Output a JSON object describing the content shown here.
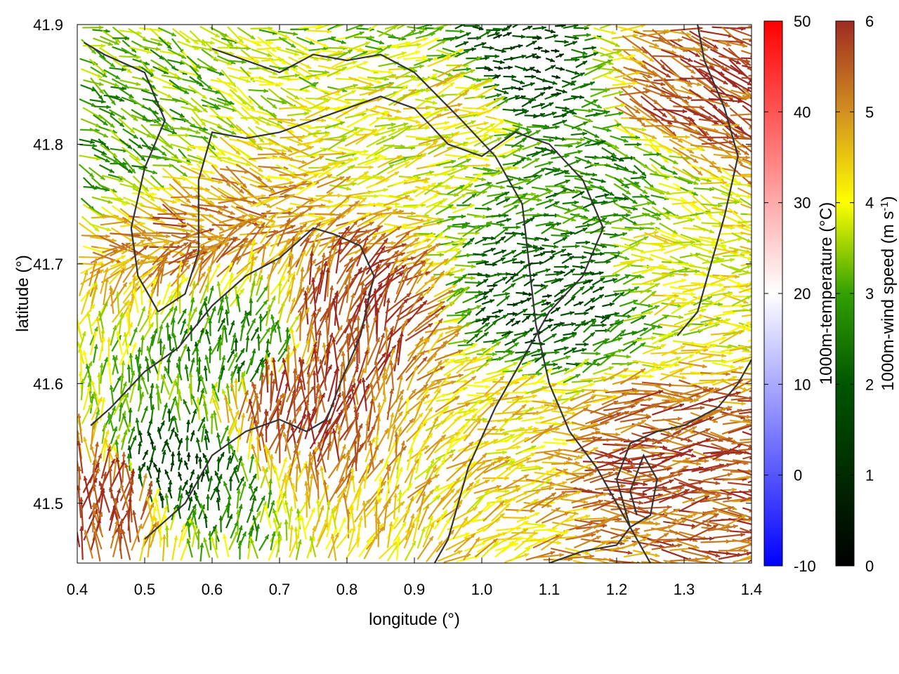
{
  "chart_data": {
    "type": "vector-field",
    "title": "",
    "xlabel": "longitude (°)",
    "ylabel": "latitude (°)",
    "xlim": [
      0.4,
      1.4
    ],
    "ylim": [
      41.45,
      41.9
    ],
    "x_ticks": [
      "0.4",
      "0.5",
      "0.6",
      "0.7",
      "0.8",
      "0.9",
      "1.0",
      "1.1",
      "1.2",
      "1.3",
      "1.4"
    ],
    "y_ticks": [
      "41.5",
      "41.6",
      "41.7",
      "41.8",
      "41.9"
    ],
    "grid": false,
    "colorbars": [
      {
        "label": "1000m-temperature (°C)",
        "ticks": [
          "-10",
          "0",
          "10",
          "20",
          "30",
          "40",
          "50"
        ],
        "range": [
          -10,
          50
        ],
        "colors": [
          "#0000ff",
          "#ffffff",
          "#ff0000"
        ]
      },
      {
        "label_main": "1000m-wind speed (m s",
        "label_sup": "-1",
        "label_end": ")",
        "ticks": [
          "0",
          "1",
          "2",
          "3",
          "4",
          "5",
          "6"
        ],
        "range": [
          0,
          6
        ],
        "colors": [
          "#000000",
          "#005500",
          "#33a000",
          "#ffff00",
          "#d29020",
          "#9e2a22"
        ]
      }
    ],
    "regions": [
      {
        "lon": 0.45,
        "lat": 41.5,
        "speed": 6.0
      },
      {
        "lon": 0.72,
        "lat": 41.58,
        "speed": 5.9
      },
      {
        "lon": 0.8,
        "lat": 41.65,
        "speed": 5.8
      },
      {
        "lon": 0.55,
        "lat": 41.73,
        "speed": 5.2
      },
      {
        "lon": 1.25,
        "lat": 41.54,
        "speed": 5.6
      },
      {
        "lon": 1.28,
        "lat": 41.85,
        "speed": 5.5
      },
      {
        "lon": 1.38,
        "lat": 41.86,
        "speed": 5.7
      },
      {
        "lon": 0.95,
        "lat": 41.83,
        "speed": 4.2
      },
      {
        "lon": 1.3,
        "lat": 41.7,
        "speed": 4.0
      },
      {
        "lon": 1.0,
        "lat": 41.55,
        "speed": 4.3
      },
      {
        "lon": 1.05,
        "lat": 41.86,
        "speed": 1.4
      },
      {
        "lon": 1.08,
        "lat": 41.67,
        "speed": 1.8
      },
      {
        "lon": 0.53,
        "lat": 41.52,
        "speed": 1.5
      },
      {
        "lon": 0.65,
        "lat": 41.62,
        "speed": 2.5
      },
      {
        "lon": 1.15,
        "lat": 41.78,
        "speed": 2.6
      },
      {
        "lon": 0.45,
        "lat": 41.8,
        "speed": 3.0
      }
    ],
    "vectors": [
      {
        "lon": 0.45,
        "lat": 41.5,
        "u": 0.1,
        "v": 1.0
      },
      {
        "lon": 0.75,
        "lat": 41.6,
        "u": 0.2,
        "v": 1.0
      },
      {
        "lon": 1.25,
        "lat": 41.54,
        "u": 1.0,
        "v": 0.05
      },
      {
        "lon": 1.3,
        "lat": 41.83,
        "u": 1.0,
        "v": -0.4
      },
      {
        "lon": 0.95,
        "lat": 41.8,
        "u": 1.0,
        "v": 0.2
      },
      {
        "lon": 1.05,
        "lat": 41.85,
        "u": 1.0,
        "v": 0.1
      },
      {
        "lon": 0.5,
        "lat": 41.82,
        "u": 0.8,
        "v": -0.4
      },
      {
        "lon": 1.05,
        "lat": 41.62,
        "u": 0.9,
        "v": 0.3
      },
      {
        "lon": 0.55,
        "lat": 41.55,
        "u": 0.0,
        "v": 1.0
      }
    ],
    "contours": [
      [
        [
          0.42,
          41.565
        ],
        [
          0.45,
          41.58
        ],
        [
          0.5,
          41.61
        ],
        [
          0.55,
          41.63
        ],
        [
          0.6,
          41.665
        ],
        [
          0.65,
          41.69
        ],
        [
          0.7,
          41.705
        ],
        [
          0.75,
          41.73
        ],
        [
          0.78,
          41.725
        ],
        [
          0.82,
          41.715
        ],
        [
          0.84,
          41.69
        ],
        [
          0.82,
          41.64
        ],
        [
          0.79,
          41.6
        ],
        [
          0.77,
          41.57
        ],
        [
          0.74,
          41.56
        ],
        [
          0.7,
          41.57
        ],
        [
          0.65,
          41.56
        ],
        [
          0.6,
          41.54
        ],
        [
          0.56,
          41.5
        ],
        [
          0.5,
          41.47
        ]
      ],
      [
        [
          0.52,
          41.66
        ],
        [
          0.49,
          41.69
        ],
        [
          0.48,
          41.73
        ],
        [
          0.5,
          41.78
        ],
        [
          0.53,
          41.82
        ],
        [
          0.5,
          41.86
        ],
        [
          0.44,
          41.875
        ],
        [
          0.41,
          41.885
        ]
      ],
      [
        [
          0.52,
          41.66
        ],
        [
          0.56,
          41.675
        ],
        [
          0.58,
          41.71
        ],
        [
          0.58,
          41.77
        ],
        [
          0.6,
          41.81
        ],
        [
          0.65,
          41.805
        ],
        [
          0.7,
          41.81
        ],
        [
          0.75,
          41.82
        ],
        [
          0.8,
          41.83
        ],
        [
          0.85,
          41.84
        ],
        [
          0.9,
          41.83
        ],
        [
          0.95,
          41.8
        ],
        [
          1.0,
          41.79
        ],
        [
          1.05,
          41.81
        ],
        [
          1.1,
          41.8
        ],
        [
          1.15,
          41.77
        ],
        [
          1.18,
          41.73
        ],
        [
          1.15,
          41.69
        ],
        [
          1.1,
          41.66
        ],
        [
          1.07,
          41.63
        ],
        [
          1.02,
          41.58
        ],
        [
          0.98,
          41.53
        ],
        [
          0.95,
          41.47
        ],
        [
          0.93,
          41.45
        ]
      ],
      [
        [
          0.6,
          41.88
        ],
        [
          0.65,
          41.87
        ],
        [
          0.7,
          41.86
        ],
        [
          0.75,
          41.875
        ],
        [
          0.8,
          41.87
        ],
        [
          0.85,
          41.875
        ],
        [
          0.9,
          41.86
        ],
        [
          0.97,
          41.82
        ],
        [
          1.02,
          41.79
        ],
        [
          1.06,
          41.75
        ],
        [
          1.07,
          41.7
        ],
        [
          1.08,
          41.65
        ],
        [
          1.1,
          41.6
        ],
        [
          1.13,
          41.56
        ],
        [
          1.17,
          41.53
        ],
        [
          1.2,
          41.5
        ],
        [
          1.23,
          41.47
        ],
        [
          1.25,
          41.45
        ]
      ],
      [
        [
          1.1,
          41.45
        ],
        [
          1.15,
          41.46
        ],
        [
          1.2,
          41.465
        ],
        [
          1.22,
          41.48
        ],
        [
          1.2,
          41.52
        ],
        [
          1.22,
          41.55
        ],
        [
          1.26,
          41.56
        ],
        [
          1.3,
          41.565
        ],
        [
          1.35,
          41.58
        ],
        [
          1.38,
          41.6
        ],
        [
          1.4,
          41.62
        ]
      ],
      [
        [
          1.22,
          41.48
        ],
        [
          1.25,
          41.49
        ],
        [
          1.26,
          41.52
        ],
        [
          1.24,
          41.54
        ],
        [
          1.22,
          41.51
        ],
        [
          1.23,
          41.49
        ]
      ],
      [
        [
          1.29,
          41.64
        ],
        [
          1.32,
          41.66
        ],
        [
          1.34,
          41.7
        ],
        [
          1.36,
          41.74
        ],
        [
          1.38,
          41.79
        ],
        [
          1.36,
          41.83
        ],
        [
          1.33,
          41.87
        ],
        [
          1.32,
          41.9
        ]
      ]
    ]
  }
}
